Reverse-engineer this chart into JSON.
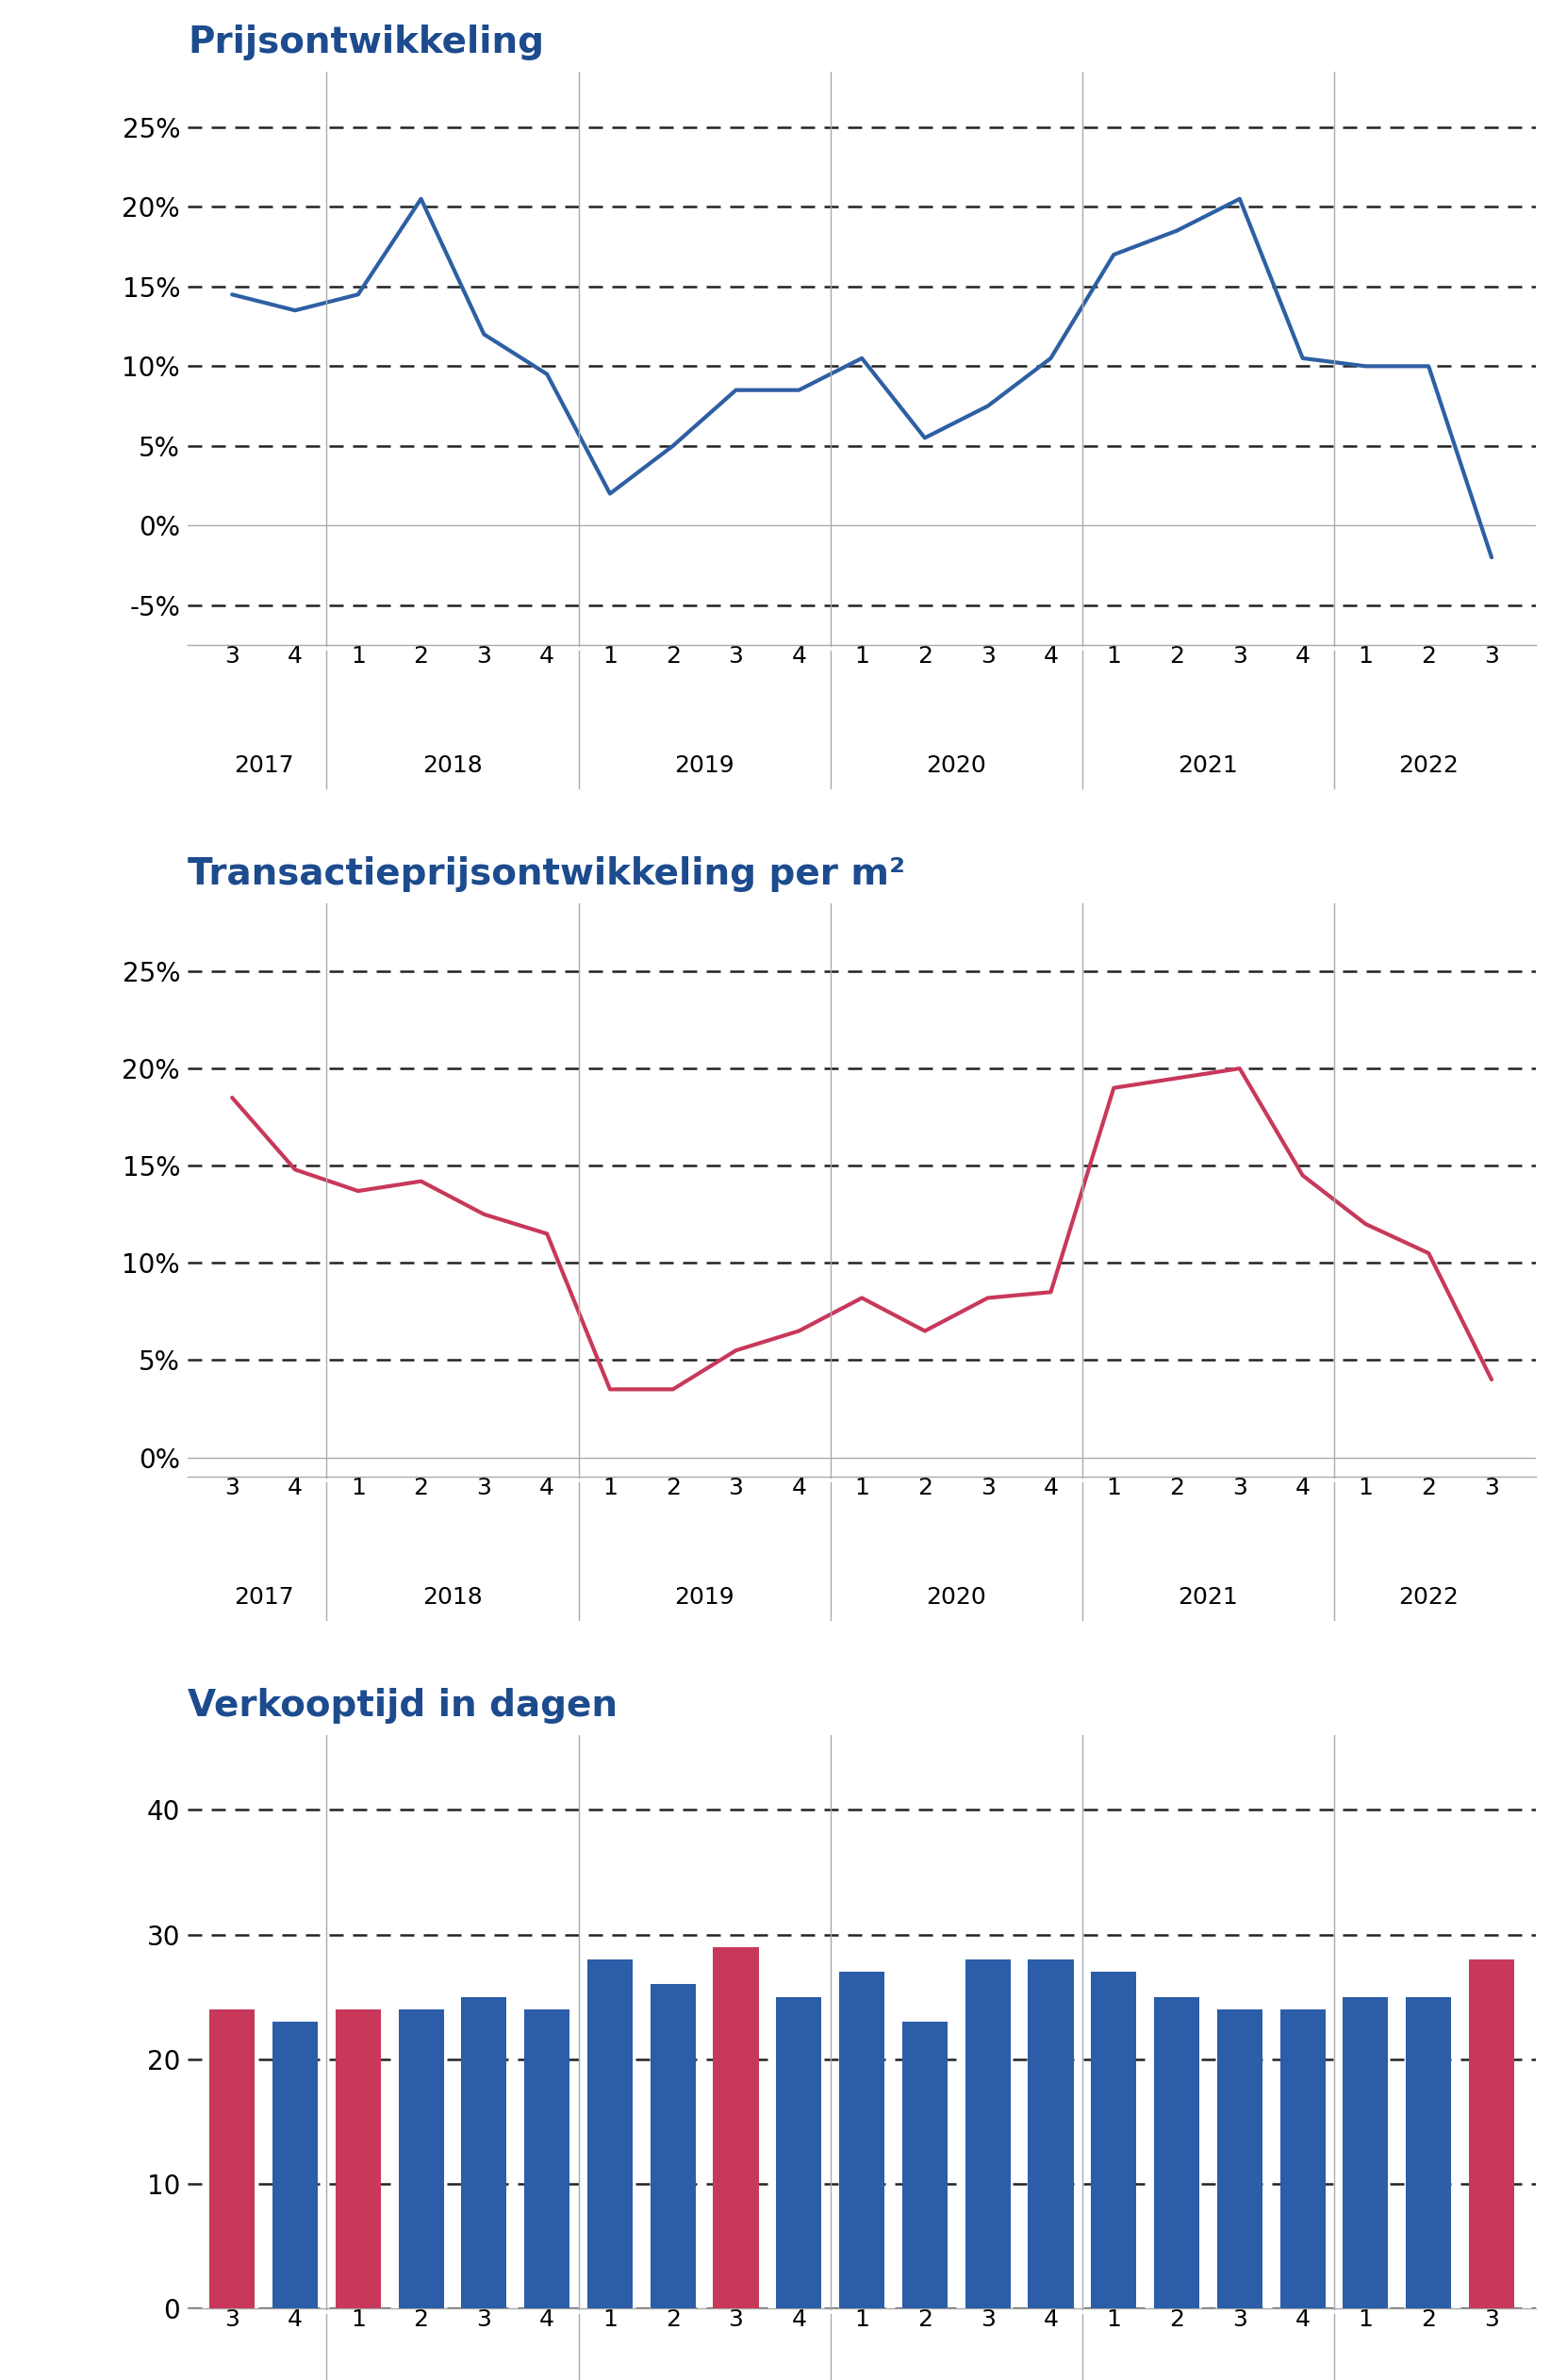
{
  "chart1_title": "Prijsontwikkeling",
  "chart2_title": "Transactieprijsontwikkeling per m²",
  "chart3_title": "Verkooptijd in dagen",
  "x_labels_quarters": [
    "3",
    "4",
    "1",
    "2",
    "3",
    "4",
    "1",
    "2",
    "3",
    "4",
    "1",
    "2",
    "3",
    "4",
    "1",
    "2",
    "3",
    "4",
    "1",
    "2",
    "3"
  ],
  "x_labels_years": [
    "2017",
    "2018",
    "2019",
    "2020",
    "2021",
    "2022"
  ],
  "year_start_indices": [
    0,
    2,
    6,
    10,
    14,
    18
  ],
  "year_end_indices": [
    1,
    5,
    9,
    13,
    17,
    20
  ],
  "chart1_values": [
    0.145,
    0.135,
    0.145,
    0.205,
    0.12,
    0.095,
    0.02,
    0.05,
    0.085,
    0.085,
    0.105,
    0.055,
    0.075,
    0.105,
    0.17,
    0.185,
    0.205,
    0.105,
    0.1,
    0.1,
    -0.02
  ],
  "chart2_values": [
    0.185,
    0.148,
    0.137,
    0.142,
    0.125,
    0.115,
    0.035,
    0.035,
    0.055,
    0.065,
    0.082,
    0.065,
    0.082,
    0.085,
    0.19,
    0.195,
    0.2,
    0.145,
    0.12,
    0.105,
    0.04
  ],
  "chart3_values": [
    24,
    23,
    24,
    24,
    25,
    24,
    28,
    26,
    29,
    25,
    27,
    23,
    28,
    28,
    27,
    25,
    24,
    24,
    25,
    25,
    28
  ],
  "chart3_highlight_indices": [
    0,
    2,
    8,
    20
  ],
  "chart1_color": "#2E5FA3",
  "chart2_color": "#C8385A",
  "chart3_bar_color": "#2B5DA8",
  "chart3_highlight_color": "#C8385A",
  "title_color": "#1C4B8E",
  "background_color": "#FFFFFF",
  "grid_color": "#222222",
  "zero_line_color": "#AAAAAA",
  "axis_color": "#AAAAAA",
  "chart1_ylim": [
    -0.075,
    0.285
  ],
  "chart1_yticks": [
    -0.05,
    0.0,
    0.05,
    0.1,
    0.15,
    0.2,
    0.25
  ],
  "chart2_ylim": [
    -0.01,
    0.285
  ],
  "chart2_yticks": [
    0.0,
    0.05,
    0.1,
    0.15,
    0.2,
    0.25
  ],
  "chart3_ylim": [
    0,
    46
  ],
  "chart3_yticks": [
    0,
    10,
    20,
    30,
    40
  ],
  "title_fontsize": 28,
  "tick_fontsize": 20,
  "quarter_fontsize": 18,
  "year_fontsize": 18,
  "line_width": 3.0,
  "grid_linewidth": 1.8,
  "grid_dash": [
    6,
    4
  ]
}
